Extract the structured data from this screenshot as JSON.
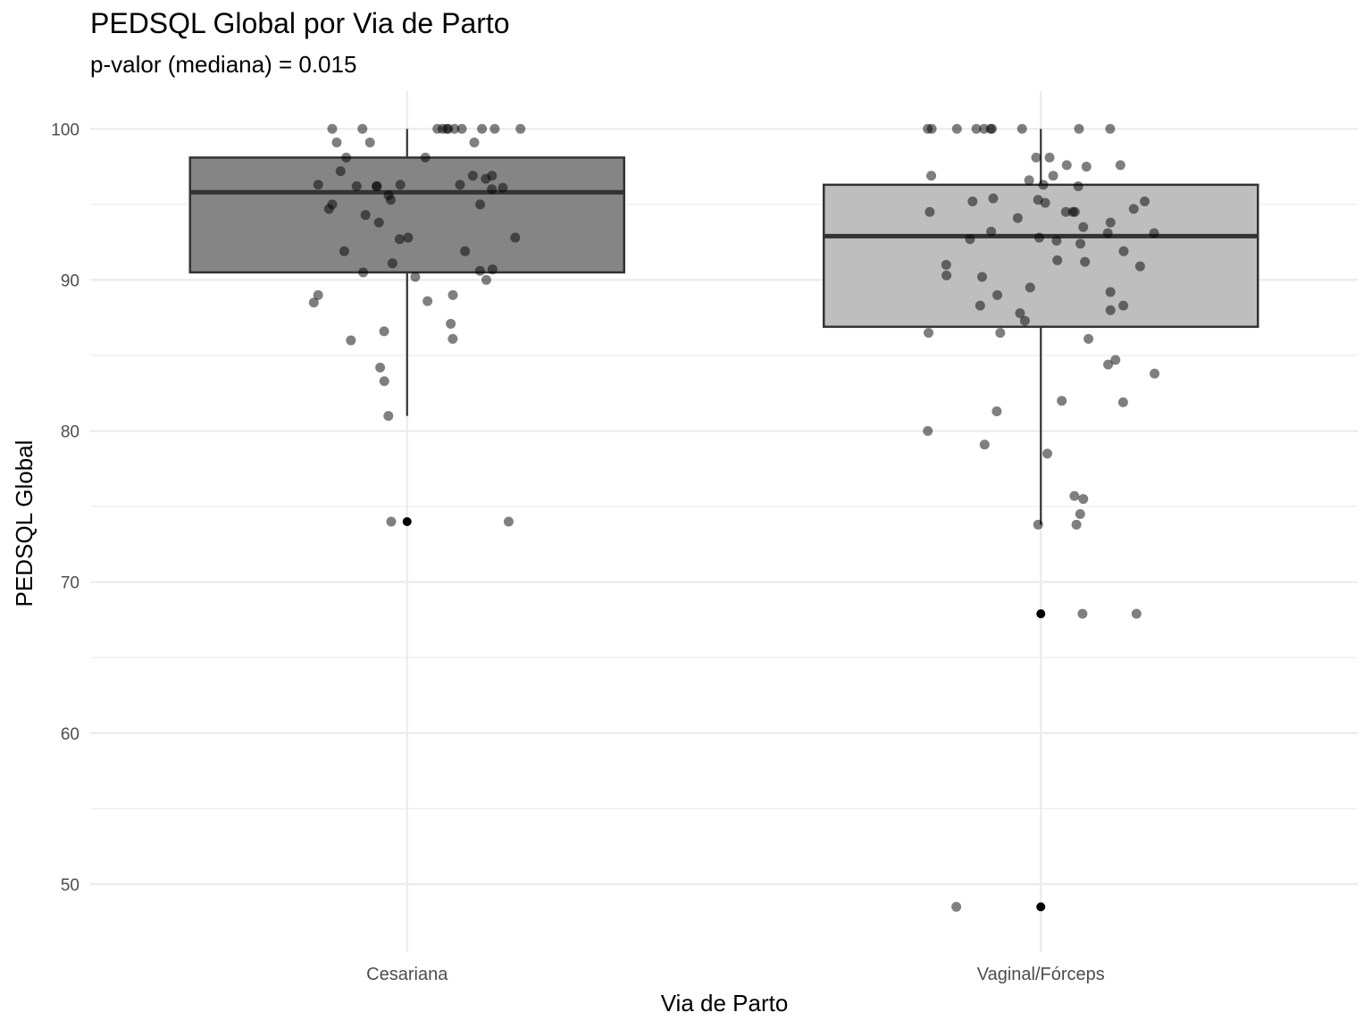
{
  "chart_data": {
    "type": "boxplot",
    "title": "PEDSQL Global por Via de Parto",
    "subtitle": "p-valor (mediana) = 0.015",
    "xlabel": "Via de Parto",
    "ylabel": "PEDSQL Global",
    "ylim": [
      45.5,
      102.5
    ],
    "yticks": [
      50,
      60,
      70,
      80,
      90,
      100
    ],
    "grid": true,
    "categories": [
      "Cesariana",
      "Vaginal/Fórceps"
    ],
    "boxes": [
      {
        "category": "Cesariana",
        "fill": "#858585",
        "q1": 90.5,
        "median": 95.8,
        "q3": 98.1,
        "whisker_low": 81.0,
        "whisker_high": 100,
        "outliers": [
          74.0
        ]
      },
      {
        "category": "Vaginal/Fórceps",
        "fill": "#bebebe",
        "q1": 86.9,
        "median": 92.9,
        "q3": 96.3,
        "whisker_low": 73.8,
        "whisker_high": 100,
        "outliers": [
          67.9,
          48.5
        ]
      }
    ],
    "points": [
      {
        "category": "Cesariana",
        "values": [
          100,
          100,
          100,
          100,
          100,
          100,
          100,
          100,
          100,
          100,
          100,
          99.1,
          99.1,
          99.1,
          98.1,
          98.1,
          97.2,
          96.9,
          96.9,
          96.7,
          96.3,
          96.3,
          96.3,
          96.2,
          96.2,
          96.2,
          96.1,
          96.0,
          95.6,
          95.3,
          95.0,
          95.0,
          94.7,
          94.3,
          93.8,
          92.8,
          92.8,
          92.7,
          91.9,
          91.9,
          91.1,
          90.7,
          90.6,
          90.5,
          90.2,
          90.0,
          89.0,
          89.0,
          88.6,
          88.5,
          87.1,
          86.6,
          86.1,
          86.0,
          84.2,
          83.3,
          81.0,
          74.0,
          74.0
        ]
      },
      {
        "category": "Vaginal/Fórceps",
        "values": [
          100,
          100,
          100,
          100,
          100,
          100,
          100,
          100,
          100,
          100,
          98.1,
          98.1,
          97.6,
          97.6,
          97.5,
          96.9,
          96.9,
          96.6,
          96.3,
          96.2,
          95.4,
          95.3,
          95.2,
          95.2,
          95.1,
          94.7,
          94.5,
          94.5,
          94.5,
          94.5,
          94.1,
          93.8,
          93.5,
          93.2,
          93.1,
          93.1,
          92.8,
          92.7,
          92.6,
          92.4,
          91.9,
          91.3,
          91.2,
          91.0,
          90.9,
          90.3,
          90.2,
          89.5,
          89.2,
          89.0,
          88.3,
          88.3,
          88.0,
          87.8,
          87.3,
          86.5,
          86.5,
          86.1,
          84.7,
          84.4,
          83.8,
          82.0,
          81.9,
          81.3,
          80.0,
          79.1,
          78.5,
          75.7,
          75.5,
          74.5,
          73.8,
          73.8,
          67.9,
          67.9,
          48.5
        ]
      }
    ]
  }
}
